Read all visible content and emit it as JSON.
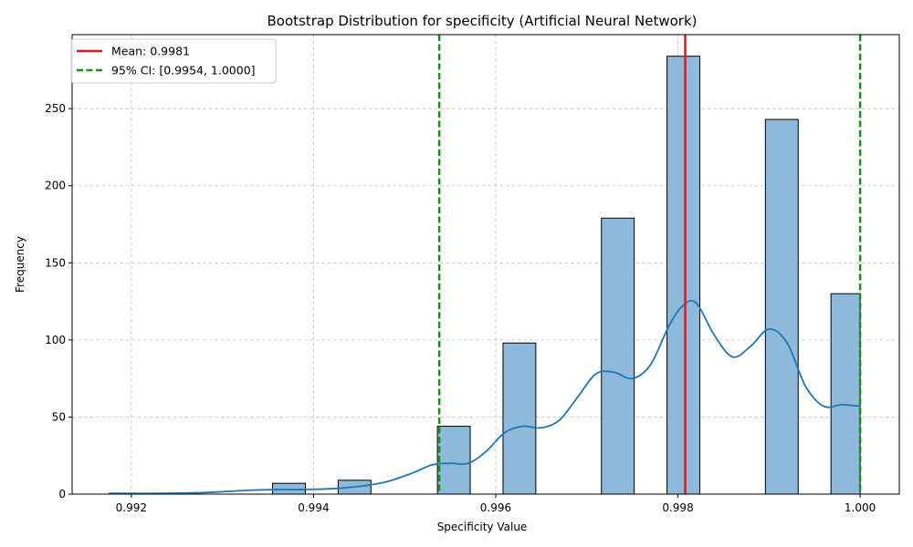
{
  "chart_data": {
    "type": "bar",
    "title": "Bootstrap Distribution for specificity (Artificial Neural Network)",
    "xlabel": "Specificity Value",
    "ylabel": "Frequency",
    "xlim": [
      0.99135,
      1.00043
    ],
    "ylim": [
      0,
      298
    ],
    "xticks": [
      0.992,
      0.994,
      0.996,
      0.998,
      1.0
    ],
    "xtick_labels": [
      "0.992",
      "0.994",
      "0.996",
      "0.998",
      "1.000"
    ],
    "yticks": [
      0,
      50,
      100,
      150,
      200,
      250
    ],
    "ytick_labels": [
      "0",
      "50",
      "100",
      "150",
      "200",
      "250"
    ],
    "grid": true,
    "legend_position": "top-left",
    "histogram": {
      "bins": [
        {
          "x0": 0.99175,
          "x1": 0.99211,
          "count": 0
        },
        {
          "x0": 0.99355,
          "x1": 0.99391,
          "count": 7
        },
        {
          "x0": 0.99427,
          "x1": 0.99463,
          "count": 9
        },
        {
          "x0": 0.99536,
          "x1": 0.99572,
          "count": 44
        },
        {
          "x0": 0.99608,
          "x1": 0.99644,
          "count": 98
        },
        {
          "x0": 0.99716,
          "x1": 0.99752,
          "count": 179
        },
        {
          "x0": 0.99788,
          "x1": 0.99824,
          "count": 284
        },
        {
          "x0": 0.99896,
          "x1": 0.99932,
          "count": 243
        },
        {
          "x0": 0.99968,
          "x1": 1.0,
          "count": 130
        }
      ],
      "color": "#8db9da",
      "edge_color": "#000000"
    },
    "kde": {
      "color": "#1f77b4",
      "x": [
        0.99175,
        0.9923,
        0.9928,
        0.9933,
        0.9936,
        0.9939,
        0.9942,
        0.9945,
        0.9948,
        0.9951,
        0.9953,
        0.9955,
        0.9957,
        0.9959,
        0.9961,
        0.9963,
        0.9965,
        0.9967,
        0.9969,
        0.9971,
        0.9973,
        0.9975,
        0.9977,
        0.9979,
        0.99805,
        0.9982,
        0.9984,
        0.9986,
        0.9988,
        0.999,
        0.9992,
        0.9994,
        0.9996,
        0.9998,
        1.0
      ],
      "y": [
        0.5,
        0.5,
        1,
        2.5,
        3,
        3,
        3.5,
        5,
        8,
        14,
        19,
        20,
        20,
        28,
        40,
        44,
        43,
        48,
        63,
        78,
        79,
        75,
        84,
        109,
        122,
        124,
        103,
        89,
        96,
        107,
        98,
        70,
        57,
        58,
        57
      ]
    },
    "reference_lines": [
      {
        "name": "Mean: 0.9981",
        "x": 0.99808,
        "color": "#e31a1c",
        "style": "solid"
      },
      {
        "name": "95% CI: [0.9954, 1.0000]",
        "x": 0.99538,
        "color": "#1a8c1a",
        "style": "dashed"
      },
      {
        "name": "",
        "x": 1.0,
        "color": "#1a8c1a",
        "style": "dashed"
      }
    ],
    "legend": [
      {
        "label": "Mean: 0.9981",
        "color": "#e31a1c",
        "style": "solid"
      },
      {
        "label": "95% CI: [0.9954, 1.0000]",
        "color": "#1a8c1a",
        "style": "dashed"
      }
    ]
  }
}
